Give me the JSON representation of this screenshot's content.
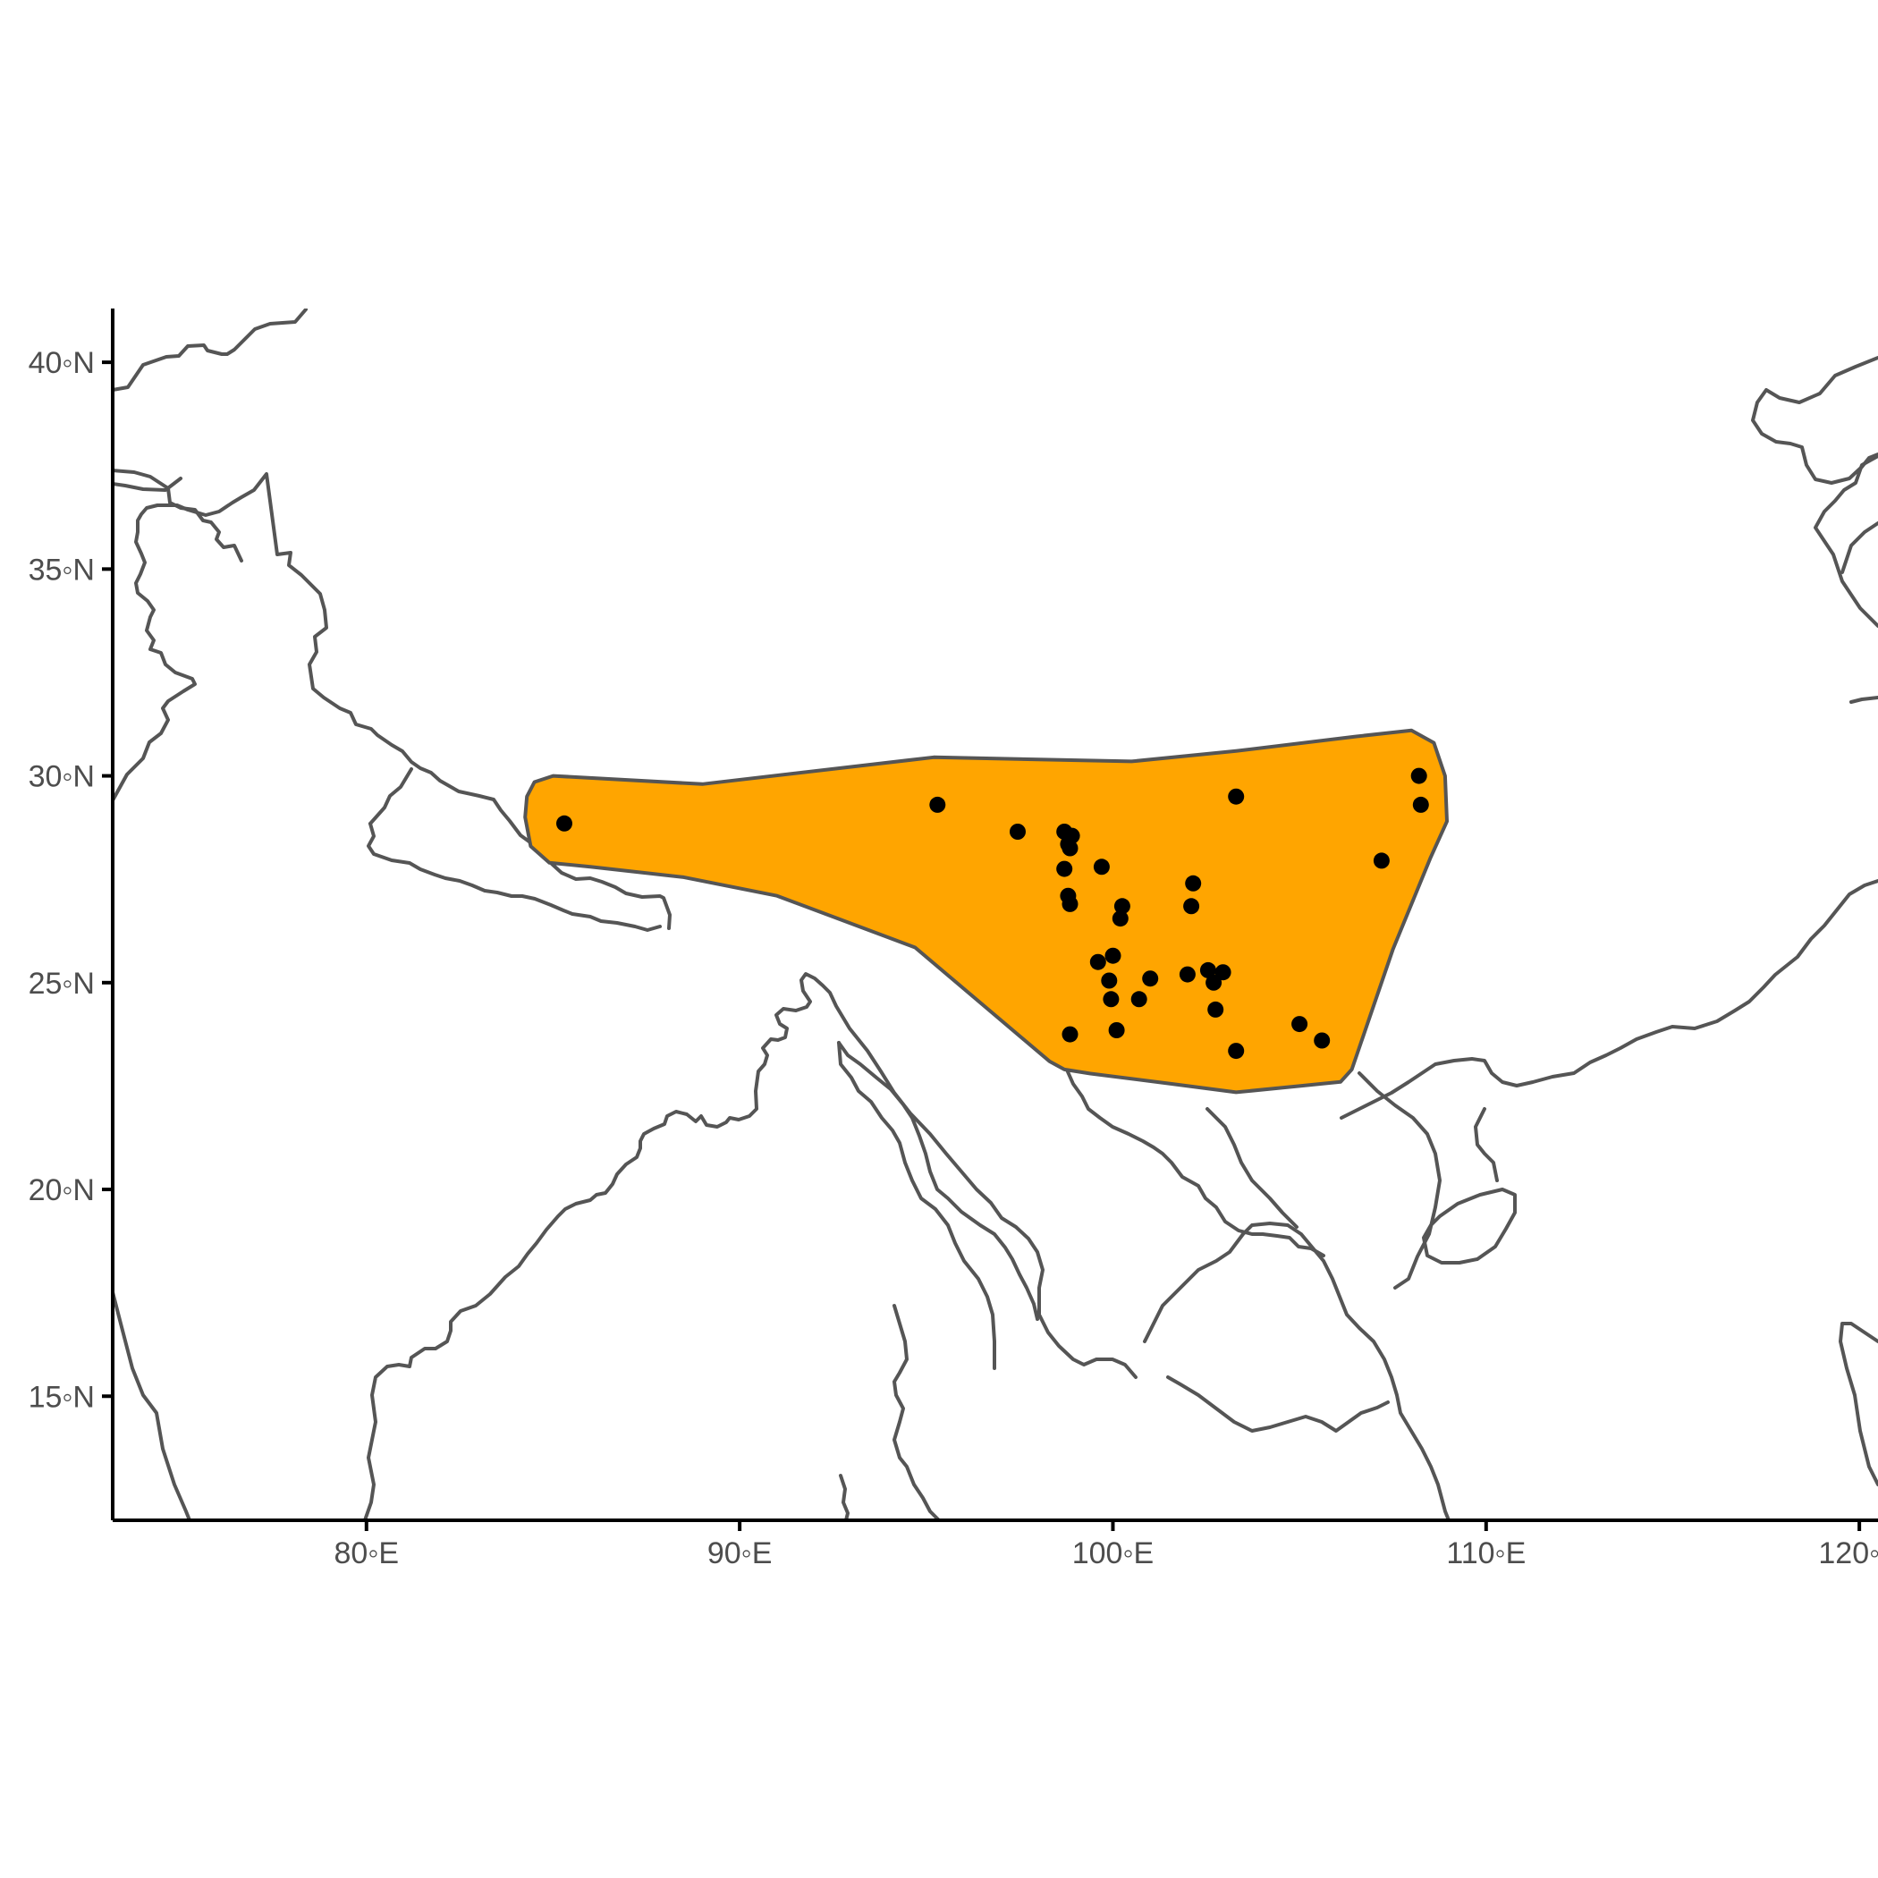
{
  "map": {
    "x_axis": {
      "range": [
        73.2,
        120.5
      ],
      "ticks": [
        {
          "value": 80,
          "label": "80◦E"
        },
        {
          "value": 90,
          "label": "90◦E"
        },
        {
          "value": 100,
          "label": "100◦E"
        },
        {
          "value": 110,
          "label": "110◦E"
        },
        {
          "value": 120,
          "label": "120◦E"
        }
      ]
    },
    "y_axis": {
      "range": [
        12.0,
        41.3
      ],
      "ticks": [
        {
          "value": 15,
          "label": "15◦N"
        },
        {
          "value": 20,
          "label": "20◦N"
        },
        {
          "value": 25,
          "label": "25◦N"
        },
        {
          "value": 30,
          "label": "30◦N"
        },
        {
          "value": 35,
          "label": "35◦N"
        },
        {
          "value": 40,
          "label": "40◦N"
        }
      ]
    },
    "range_fill_color": "#FFA500",
    "outline_color": "#555555",
    "point_color": "#000000",
    "range_polygon": [
      [
        84.5,
        29.85
      ],
      [
        85.0,
        30.0
      ],
      [
        89.0,
        29.8
      ],
      [
        95.2,
        30.45
      ],
      [
        100.5,
        30.35
      ],
      [
        103.3,
        30.6
      ],
      [
        106.5,
        30.95
      ],
      [
        108.0,
        31.1
      ],
      [
        108.6,
        30.8
      ],
      [
        108.9,
        30.0
      ],
      [
        108.95,
        28.9
      ],
      [
        108.5,
        28.0
      ],
      [
        107.5,
        25.8
      ],
      [
        106.4,
        22.9
      ],
      [
        106.1,
        22.6
      ],
      [
        105.0,
        22.5
      ],
      [
        103.3,
        22.35
      ],
      [
        101.6,
        22.55
      ],
      [
        99.4,
        22.8
      ],
      [
        98.7,
        22.9
      ],
      [
        98.3,
        23.1
      ],
      [
        94.7,
        25.85
      ],
      [
        91.0,
        27.1
      ],
      [
        88.5,
        27.55
      ],
      [
        86.0,
        27.8
      ],
      [
        84.9,
        27.9
      ],
      [
        84.4,
        28.3
      ],
      [
        84.25,
        29.0
      ],
      [
        84.3,
        29.5
      ]
    ],
    "occurrences": [
      [
        85.3,
        28.85
      ],
      [
        95.3,
        29.3
      ],
      [
        97.45,
        28.65
      ],
      [
        98.7,
        28.65
      ],
      [
        98.9,
        28.55
      ],
      [
        98.8,
        28.35
      ],
      [
        98.85,
        28.25
      ],
      [
        98.7,
        27.75
      ],
      [
        99.7,
        27.8
      ],
      [
        98.8,
        27.1
      ],
      [
        98.85,
        26.9
      ],
      [
        100.25,
        26.85
      ],
      [
        100.2,
        26.55
      ],
      [
        102.15,
        27.4
      ],
      [
        102.1,
        26.85
      ],
      [
        103.3,
        29.5
      ],
      [
        108.2,
        30.0
      ],
      [
        108.25,
        29.3
      ],
      [
        107.2,
        27.95
      ],
      [
        99.6,
        25.5
      ],
      [
        100.0,
        25.65
      ],
      [
        99.9,
        25.05
      ],
      [
        101.0,
        25.1
      ],
      [
        99.95,
        24.6
      ],
      [
        100.7,
        24.6
      ],
      [
        102.0,
        25.2
      ],
      [
        102.55,
        25.3
      ],
      [
        102.95,
        25.25
      ],
      [
        102.7,
        25.0
      ],
      [
        102.75,
        24.35
      ],
      [
        98.85,
        23.75
      ],
      [
        100.1,
        23.85
      ],
      [
        103.3,
        23.35
      ],
      [
        105.0,
        24.0
      ],
      [
        105.6,
        23.6
      ]
    ]
  }
}
